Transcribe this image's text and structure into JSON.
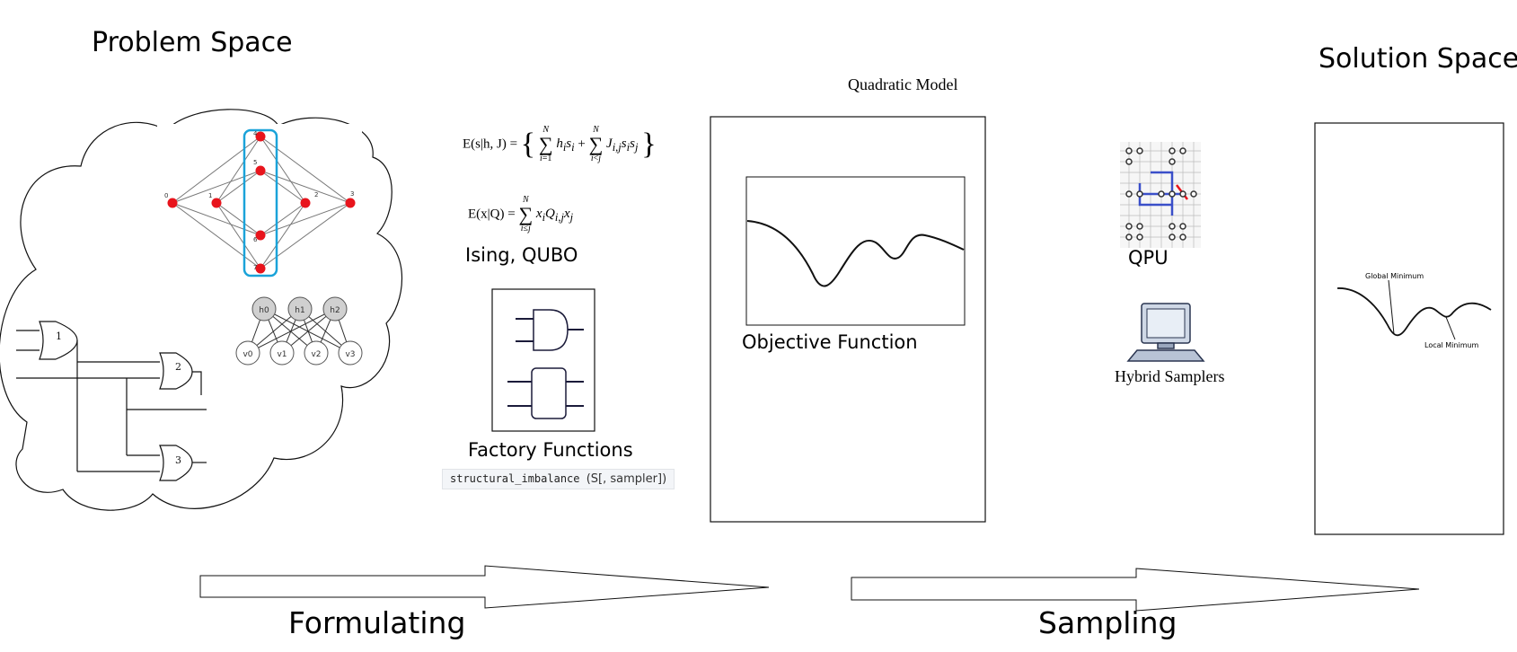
{
  "titles": {
    "problem_space": "Problem Space",
    "solution_space": "Solution Space"
  },
  "labels": {
    "quadratic_model": "Quadratic Model",
    "ising_qubo": "Ising, QUBO",
    "factory_functions": "Factory Functions",
    "objective_function": "Objective Function",
    "qpu": "QPU",
    "hybrid_samplers": "Hybrid Samplers",
    "formulating": "Formulating",
    "sampling": "Sampling",
    "global_minimum": "Global Minimum",
    "local_minimum": "Local Minimum"
  },
  "code": {
    "func": "structural_imbalance",
    "args": "(S[, sampler])"
  },
  "equations": {
    "ising_lhs": "E(s|h, J) =",
    "qubo_lhs": "E(x|Q) ="
  },
  "graph_nodes": {
    "left": [
      "0",
      "1"
    ],
    "middle": [
      "4",
      "5",
      "6",
      "7"
    ],
    "right": [
      "2",
      "3"
    ]
  },
  "circuit_gates": [
    "1",
    "2",
    "3"
  ],
  "rbm": {
    "hidden": [
      "h0",
      "h1",
      "h2"
    ],
    "visible": [
      "v0",
      "v1",
      "v2",
      "v3"
    ]
  },
  "colors": {
    "node_red": "#e8141c",
    "highlight_blue": "#1aa3d9",
    "qpu_blue": "#3a4fc9",
    "line": "#111111"
  }
}
